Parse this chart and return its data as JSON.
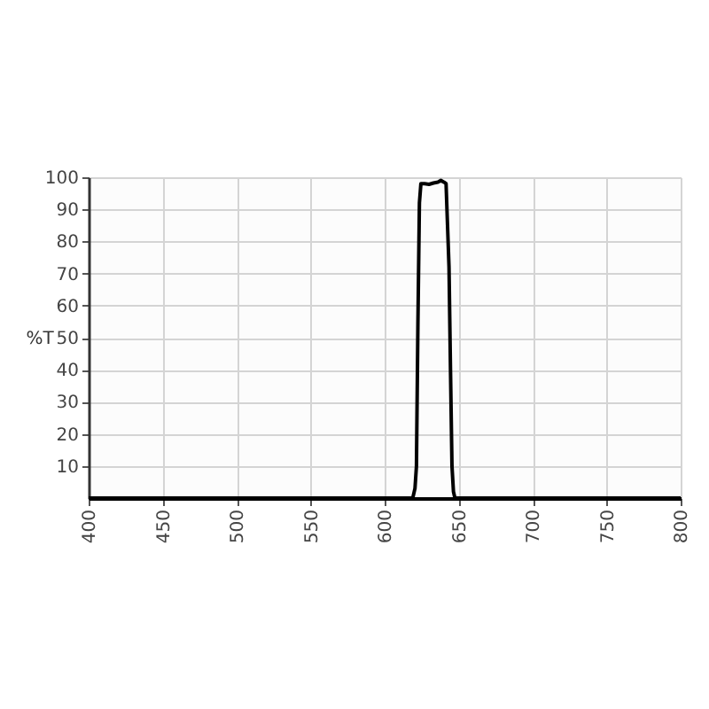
{
  "chart_data": {
    "type": "line",
    "ylabel": "%T",
    "x": [
      400,
      619,
      620.5,
      621.5,
      622.5,
      623.5,
      624.5,
      627,
      630,
      633,
      636,
      638,
      640,
      641.5,
      642.5,
      643.5,
      644.5,
      645.5,
      646.5,
      647.5,
      800
    ],
    "series": [
      {
        "color": "#000000",
        "values": [
          0,
          0,
          3,
          10,
          55,
          92,
          98,
          98,
          97.8,
          98.2,
          98.5,
          99,
          98.5,
          98,
          85,
          72,
          40,
          10,
          2,
          0,
          0
        ]
      }
    ],
    "xlim": [
      400,
      800
    ],
    "xticks": [
      400,
      450,
      500,
      550,
      600,
      650,
      700,
      750,
      800
    ],
    "ylim": [
      0,
      100
    ],
    "yticks": [
      10,
      20,
      30,
      40,
      50,
      60,
      70,
      80,
      90,
      100
    ],
    "grid": true,
    "line_style": "solid",
    "marker": "none"
  }
}
